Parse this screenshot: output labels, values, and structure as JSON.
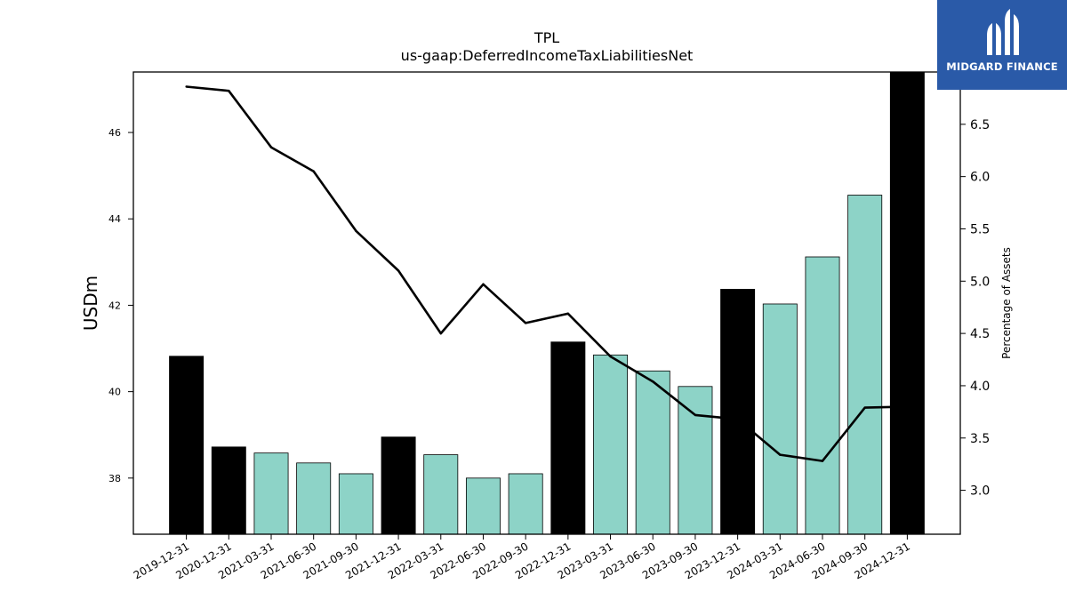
{
  "logo": {
    "text": "MIDGARD FINANCE",
    "bg_color": "#2a5aa8"
  },
  "chart_data": {
    "type": "bar",
    "title": "TPL",
    "subtitle": "us-gaap:DeferredIncomeTaxLiabilitiesNet",
    "ylabel": "USDm",
    "y2label": "Percentage of Assets",
    "categories": [
      "2019-12-31",
      "2020-12-31",
      "2021-03-31",
      "2021-06-30",
      "2021-09-30",
      "2021-12-31",
      "2022-03-31",
      "2022-06-30",
      "2022-09-30",
      "2022-12-31",
      "2023-03-31",
      "2023-06-30",
      "2023-09-30",
      "2023-12-31",
      "2024-03-31",
      "2024-06-30",
      "2024-09-30",
      "2024-12-31"
    ],
    "ylim": [
      36.7,
      47.4
    ],
    "y2lim": [
      2.58,
      7.0
    ],
    "yticks": [
      38,
      40,
      42,
      44,
      46
    ],
    "y2ticks": [
      3.0,
      3.5,
      4.0,
      4.5,
      5.0,
      5.5,
      6.0,
      6.5
    ],
    "grid": false,
    "series": [
      {
        "values": [
          40.82,
          38.72,
          38.58,
          38.35,
          38.1,
          38.95,
          38.54,
          38.0,
          38.1,
          41.15,
          40.85,
          40.48,
          40.12,
          42.37,
          42.03,
          43.12,
          44.55,
          47.5
        ],
        "annual": [
          true,
          true,
          false,
          false,
          false,
          true,
          false,
          false,
          false,
          true,
          false,
          false,
          false,
          true,
          false,
          false,
          false,
          true
        ],
        "annual_color": "#000000",
        "quarter_color": "#8dd3c7"
      },
      {
        "axis": "right",
        "type": "line",
        "color": "#000000",
        "values": [
          6.86,
          6.82,
          6.28,
          6.05,
          5.48,
          5.1,
          4.5,
          4.97,
          4.6,
          4.69,
          4.28,
          4.04,
          3.72,
          3.68,
          3.34,
          3.28,
          3.79,
          3.8
        ]
      }
    ]
  }
}
